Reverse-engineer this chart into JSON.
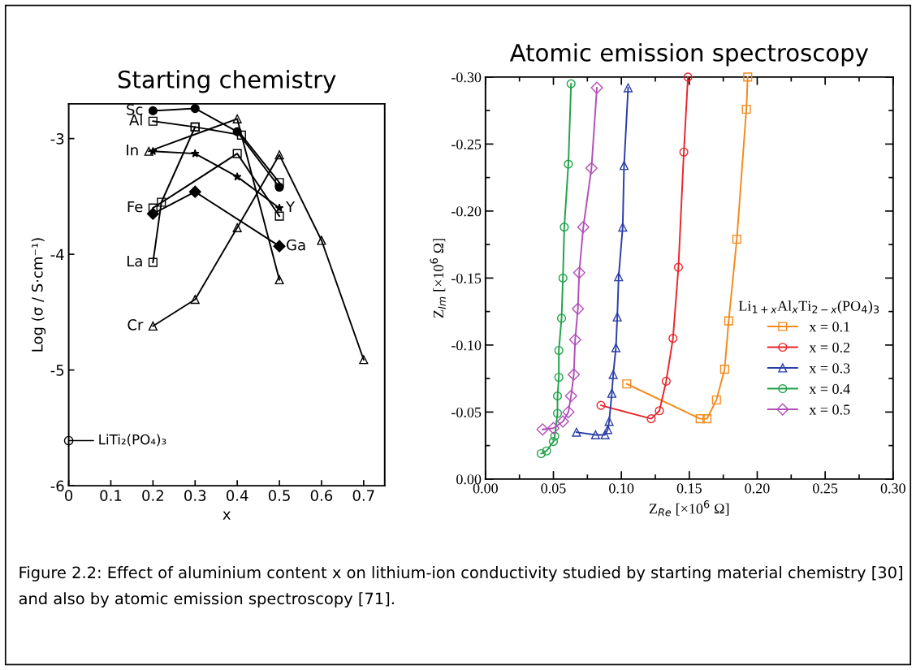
{
  "chart_data": [
    {
      "type": "line",
      "title": "Starting chemistry",
      "xlabel": "x",
      "ylabel": "Log (σ / S·cm⁻¹)",
      "xlim": [
        0,
        0.75
      ],
      "ylim": [
        -6,
        -2.7
      ],
      "xticks": [
        0,
        0.1,
        0.2,
        0.3,
        0.4,
        0.5,
        0.6,
        0.7
      ],
      "yticks": [
        -6,
        -5,
        -4,
        -3
      ],
      "grid": false,
      "legend": false,
      "series": [
        {
          "name": "Sc",
          "color": "#000000",
          "marker": "circle",
          "x": [
            0.2,
            0.3,
            0.4,
            0.5
          ],
          "values": [
            -2.76,
            -2.74,
            -2.94,
            -3.42
          ]
        },
        {
          "name": "Al",
          "color": "#000000",
          "marker": "square",
          "x": [
            0.2,
            0.3,
            0.41,
            0.5
          ],
          "values": [
            -2.85,
            -2.9,
            -2.97,
            -3.38
          ]
        },
        {
          "name": "In",
          "color": "#000000",
          "marker": "triangle",
          "x": [
            0.19,
            0.4,
            0.5
          ],
          "values": [
            -3.11,
            -2.83,
            -4.22
          ]
        },
        {
          "name": "Y",
          "color": "#000000",
          "marker": "star",
          "x": [
            0.2,
            0.3,
            0.4,
            0.5
          ],
          "values": [
            -3.11,
            -3.13,
            -3.33,
            -3.6
          ]
        },
        {
          "name": "Fe",
          "color": "#000000",
          "marker": "square",
          "x": [
            0.2,
            0.4,
            0.5
          ],
          "values": [
            -3.6,
            -3.13,
            -3.67
          ]
        },
        {
          "name": "Ga",
          "color": "#000000",
          "marker": "diamond",
          "x": [
            0.2,
            0.3,
            0.5
          ],
          "values": [
            -3.65,
            -3.46,
            -3.93
          ]
        },
        {
          "name": "La",
          "color": "#000000",
          "marker": "square",
          "x": [
            0.2,
            0.22,
            0.3
          ],
          "values": [
            -4.07,
            -3.55,
            -2.9
          ]
        },
        {
          "name": "Cr",
          "color": "#000000",
          "marker": "triangle",
          "x": [
            0.2,
            0.3,
            0.4,
            0.5,
            0.6,
            0.7
          ],
          "values": [
            -4.62,
            -4.39,
            -3.77,
            -3.14,
            -3.88,
            -4.91
          ]
        },
        {
          "type": "scatter",
          "color": "#000000",
          "marker": "circle",
          "x": [
            0
          ],
          "values": [
            -5.61
          ]
        }
      ],
      "annotations": [
        {
          "text": "LiTi₂(PO₄)₃",
          "x": 0,
          "y": -5.61
        },
        "Figure 2.2: Effect of aluminium content x on lithium-ion conductivity studied by starting material chemistry [30]  and also by atomic emission spectroscopy [71]."
      ]
    },
    {
      "type": "line",
      "title": "Atomic emission spectroscopy",
      "xlabel": "Z$_{Re}$ [×10$^{6}$ Ω]",
      "ylabel": "Z$_{Im}$ [×10$^{6}$ Ω]",
      "legend_title": "Li$_{1+x}$Al$_{x}$Ti$_{2−x}$(PO$_{4}$)$_{3}$",
      "legend": "bottom right",
      "grid": false,
      "xlim": [
        0,
        0.3
      ],
      "ylim": [
        0,
        -0.3
      ],
      "xticks": [
        {
          "value": 0,
          "label": "0.00"
        },
        {
          "value": 0.05,
          "label": "0.05"
        },
        {
          "value": 0.1,
          "label": "0.10"
        },
        {
          "value": 0.15,
          "label": "0.15"
        },
        {
          "value": 0.2,
          "label": "0.20"
        },
        {
          "value": 0.25,
          "label": "0.25"
        },
        {
          "value": 0.3,
          "label": "0.30"
        }
      ],
      "yticks": [
        {
          "value": 0,
          "label": "0.00"
        },
        {
          "value": -0.05,
          "label": "-0.05"
        },
        {
          "value": -0.1,
          "label": "-0.10"
        },
        {
          "value": -0.15,
          "label": "-0.15"
        },
        {
          "value": -0.2,
          "label": "-0.20"
        },
        {
          "value": -0.25,
          "label": "-0.25"
        },
        {
          "value": -0.3,
          "label": "-0.30"
        }
      ],
      "series": [
        {
          "name": "x = 0.1",
          "color": "#f28a1e",
          "marker": "square",
          "x": [
            0.104,
            0.158,
            0.163,
            0.17,
            0.176,
            0.179,
            0.185,
            0.192,
            0.193
          ],
          "values": [
            -0.071,
            -0.045,
            -0.045,
            -0.059,
            -0.082,
            -0.118,
            -0.179,
            -0.276,
            -0.3
          ]
        },
        {
          "name": "x = 0.2",
          "color": "#e8262c",
          "marker": "circle",
          "x": [
            0.085,
            0.122,
            0.128,
            0.133,
            0.138,
            0.142,
            0.146,
            0.149
          ],
          "values": [
            -0.055,
            -0.045,
            -0.051,
            -0.073,
            -0.105,
            -0.158,
            -0.244,
            -0.3
          ]
        },
        {
          "name": "x = 0.3",
          "color": "#2b3ea8",
          "marker": "triangle",
          "x": [
            0.067,
            0.081,
            0.088,
            0.09,
            0.091,
            0.093,
            0.094,
            0.096,
            0.097,
            0.098,
            0.101,
            0.102,
            0.105
          ],
          "values": [
            -0.035,
            -0.033,
            -0.033,
            -0.037,
            -0.043,
            -0.064,
            -0.078,
            -0.098,
            -0.121,
            -0.151,
            -0.188,
            -0.234,
            -0.292
          ]
        },
        {
          "name": "x = 0.4",
          "color": "#22a24a",
          "marker": "circle",
          "x": [
            0.041,
            0.045,
            0.05,
            0.051,
            0.053,
            0.053,
            0.054,
            0.054,
            0.056,
            0.057,
            0.058,
            0.061,
            0.063
          ],
          "values": [
            -0.019,
            -0.021,
            -0.028,
            -0.032,
            -0.049,
            -0.062,
            -0.076,
            -0.096,
            -0.12,
            -0.15,
            -0.188,
            -0.235,
            -0.295
          ]
        },
        {
          "name": "x = 0.5",
          "color": "#b24fb8",
          "marker": "diamond",
          "x": [
            0.042,
            0.05,
            0.057,
            0.061,
            0.063,
            0.065,
            0.066,
            0.068,
            0.069,
            0.072,
            0.078,
            0.082
          ],
          "values": [
            -0.037,
            -0.038,
            -0.043,
            -0.05,
            -0.062,
            -0.078,
            -0.104,
            -0.127,
            -0.154,
            -0.188,
            -0.232,
            -0.292
          ]
        }
      ]
    }
  ]
}
